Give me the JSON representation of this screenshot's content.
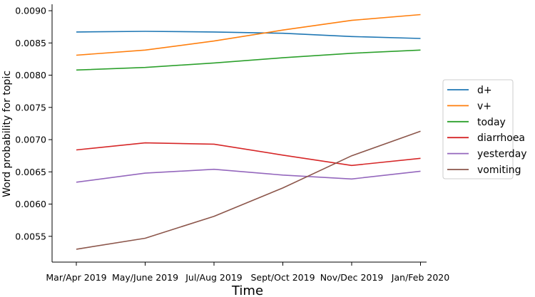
{
  "chart_data": {
    "type": "line",
    "title": "",
    "xlabel": "Time",
    "ylabel": "Word probability for topic",
    "categories": [
      "Mar/Apr 2019",
      "May/June 2019",
      "Jul/Aug 2019",
      "Sept/Oct 2019",
      "Nov/Dec 2019",
      "Jan/Feb 2020"
    ],
    "ylim": [
      0.0051,
      0.0091
    ],
    "yticks": [
      "0.0055",
      "0.0060",
      "0.0065",
      "0.0070",
      "0.0075",
      "0.0080",
      "0.0085",
      "0.0090"
    ],
    "grid": false,
    "legend_position": "right",
    "series": [
      {
        "name": "d+",
        "color": "#1f77b4",
        "values": [
          0.00867,
          0.00868,
          0.00867,
          0.00865,
          0.0086,
          0.00857
        ]
      },
      {
        "name": "v+",
        "color": "#ff7f0e",
        "values": [
          0.00831,
          0.00839,
          0.00853,
          0.0087,
          0.00885,
          0.00894
        ]
      },
      {
        "name": "today",
        "color": "#2ca02c",
        "values": [
          0.00808,
          0.00812,
          0.00819,
          0.00827,
          0.00834,
          0.00839
        ]
      },
      {
        "name": "diarrhoea",
        "color": "#d62728",
        "values": [
          0.00684,
          0.00695,
          0.00693,
          0.00676,
          0.0066,
          0.00671
        ]
      },
      {
        "name": "yesterday",
        "color": "#9467bd",
        "values": [
          0.00634,
          0.00648,
          0.00654,
          0.00645,
          0.00639,
          0.00651
        ]
      },
      {
        "name": "vomiting",
        "color": "#8c564b",
        "values": [
          0.0053,
          0.00547,
          0.00581,
          0.00625,
          0.00675,
          0.00713
        ]
      }
    ]
  }
}
